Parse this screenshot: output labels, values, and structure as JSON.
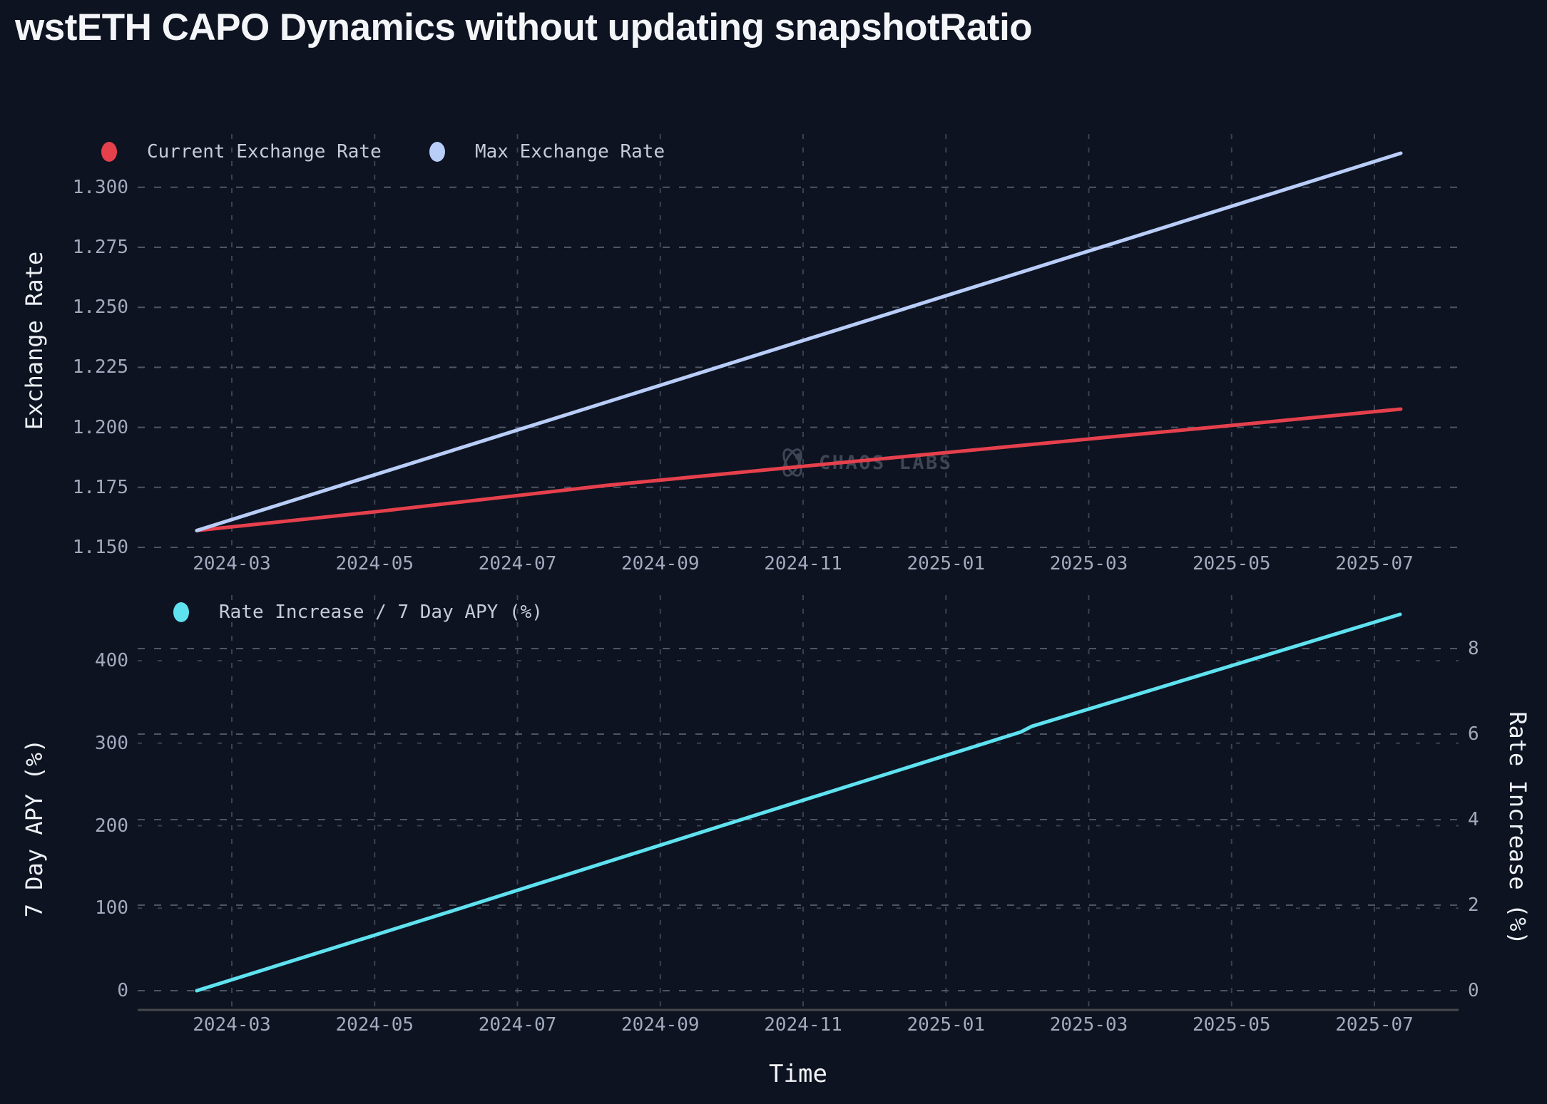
{
  "title": "wstETH CAPO Dynamics without updating snapshotRatio",
  "watermark": {
    "text": "CHAOS LABS"
  },
  "colors": {
    "background": "#0d1321",
    "current_rate_red": "#e5404c",
    "max_rate_periwinkle": "#b9cdf9",
    "rate_increase_cyan": "#5fe2f0",
    "grid_major": "#4d5567",
    "grid_minor": "#3a4252",
    "axis_line": "#46484c",
    "tick_text": "#a2aabd",
    "legend_text": "#c5cbd8",
    "axis_title_text": "#eef0f5",
    "title_text": "#f4f5f8",
    "watermark_text": "#3e4656"
  },
  "chart_data": {
    "type": "line",
    "x_unit": "months since 2024-03",
    "x_tick_labels": [
      "2024-03",
      "2024-05",
      "2024-07",
      "2024-09",
      "2024-11",
      "2025-01",
      "2025-03",
      "2025-05",
      "2025-07"
    ],
    "grid": true,
    "legend_position": "top-left-inside",
    "charts": [
      {
        "id": "exchange-rate",
        "y_axis": {
          "title": "Exchange Rate",
          "ticks": [
            "1.150",
            "1.175",
            "1.200",
            "1.225",
            "1.250",
            "1.275",
            "1.300"
          ],
          "range": [
            1.15,
            1.322
          ]
        },
        "legend": [
          {
            "label": "Current Exchange Rate",
            "color": "#e5404c"
          },
          {
            "label": "Max Exchange Rate",
            "color": "#b9cdf9"
          }
        ],
        "series": [
          {
            "name": "Current Exchange Rate",
            "color": "#e5404c",
            "axis": "left",
            "points": [
              [
                -0.49,
                1.157
              ],
              [
                2,
                1.1648
              ],
              [
                5.24,
                1.1758
              ],
              [
                8,
                1.1838
              ],
              [
                11.24,
                1.193
              ],
              [
                14,
                1.2008
              ],
              [
                16.37,
                1.2076
              ]
            ]
          },
          {
            "name": "Max Exchange Rate",
            "color": "#b9cdf9",
            "axis": "left",
            "points": [
              [
                -0.49,
                1.157
              ],
              [
                16.37,
                1.3142
              ]
            ]
          }
        ]
      },
      {
        "id": "rate-increase",
        "left_axis": {
          "title": "7 Day APY (%)",
          "ticks": [
            "0",
            "100",
            "200",
            "300",
            "400"
          ],
          "range": [
            0,
            470
          ]
        },
        "right_axis": {
          "title": "Rate Increase (%)",
          "ticks": [
            "0",
            "2",
            "4",
            "6",
            "8"
          ],
          "range": [
            0,
            9.3
          ]
        },
        "x_axis_title": "Time",
        "legend": [
          {
            "label": "Rate Increase / 7 Day APY (%)",
            "color": "#5fe2f0"
          }
        ],
        "series": [
          {
            "name": "Rate Increase / 7 Day APY (%)",
            "color": "#5fe2f0",
            "axis": "right",
            "points": [
              [
                -0.49,
                0
              ],
              [
                3,
                1.82
              ],
              [
                7,
                3.93
              ],
              [
                11.05,
                6.05
              ],
              [
                11.2,
                6.18
              ],
              [
                14,
                7.6
              ],
              [
                16.36,
                8.8
              ]
            ]
          }
        ]
      }
    ]
  }
}
